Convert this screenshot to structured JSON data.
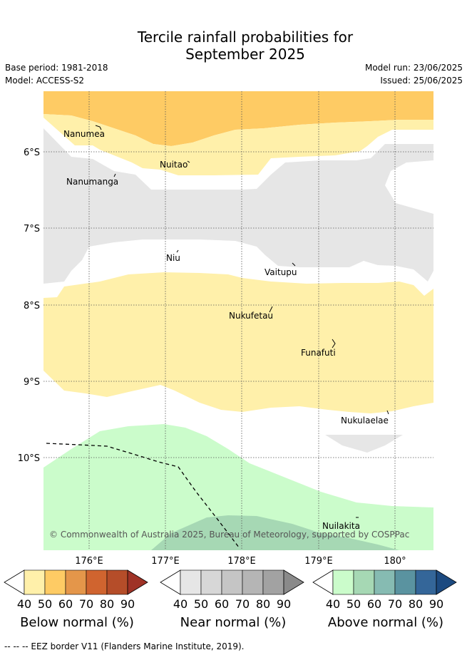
{
  "header": {
    "title_line1": "Tercile rainfall probabilities for",
    "title_line2": "September 2025",
    "base_period": "Base period: 1981-2018",
    "model": "Model: ACCESS-S2",
    "model_run": "Model run: 23/06/2025",
    "issued": "Issued: 25/06/2025"
  },
  "map": {
    "lat_labels": [
      "6°S",
      "7°S",
      "8°S",
      "9°S",
      "10°S"
    ],
    "lon_labels": [
      "176°E",
      "177°E",
      "178°E",
      "179°E",
      "180°"
    ],
    "places": [
      {
        "name": "Nanumea"
      },
      {
        "name": "Nuitao"
      },
      {
        "name": "Nanumanga"
      },
      {
        "name": "Niu"
      },
      {
        "name": "Vaitupu"
      },
      {
        "name": "Nukufetau"
      },
      {
        "name": "Funafuti"
      },
      {
        "name": "Nukulaelae"
      },
      {
        "name": "Nuilakita"
      }
    ],
    "copyright": "© Commonwealth of Australia 2025, Bureau of Meteorology, supported by COSPPac"
  },
  "colorbars": [
    {
      "title": "Below normal (%)",
      "ticks": [
        "40",
        "50",
        "60",
        "70",
        "80",
        "90"
      ],
      "colors": [
        "#fff0aa",
        "#fecb64",
        "#e4964a",
        "#d0642f",
        "#b54d29",
        "#9f3226"
      ]
    },
    {
      "title": "Near normal (%)",
      "ticks": [
        "40",
        "50",
        "60",
        "70",
        "80",
        "90"
      ],
      "colors": [
        "#e6e6e6",
        "#d7d7d7",
        "#c5c5c5",
        "#b5b5b5",
        "#a2a2a2",
        "#8a8a8a"
      ]
    },
    {
      "title": "Above normal (%)",
      "ticks": [
        "40",
        "50",
        "60",
        "70",
        "80",
        "90"
      ],
      "colors": [
        "#cbfccb",
        "#a6d8b4",
        "#86bbb2",
        "#5a93a0",
        "#346699",
        "#1c4a80"
      ]
    }
  ],
  "footer": {
    "legend_text": "--  --  -- EEZ border V11 (Flanders Marine Institute, 2019)."
  }
}
